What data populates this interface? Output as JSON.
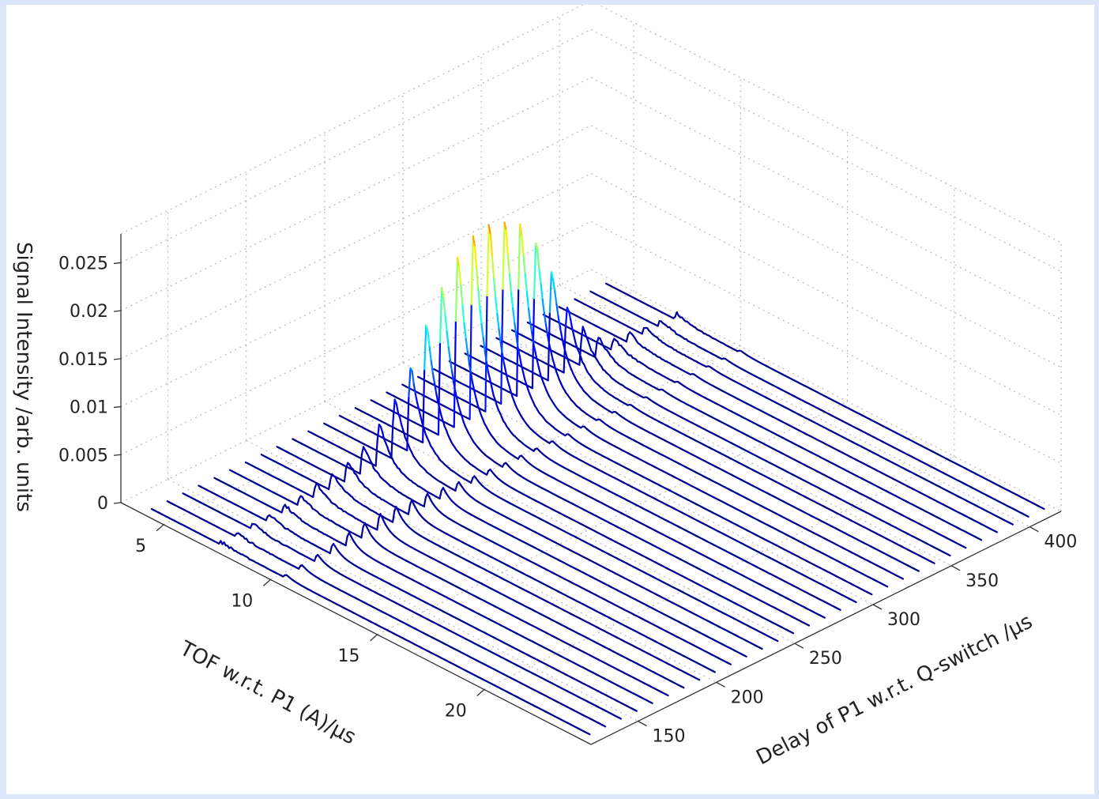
{
  "chart_data": {
    "type": "waterfall-3d",
    "title": "",
    "xlabel": "TOF w.r.t. P1 (A)/µs",
    "ylabel": "Delay of P1 w.r.t. Q-switch /µs",
    "zlabel": "Signal Intensity /arb. units",
    "xlim": [
      3,
      25
    ],
    "ylim": [
      120,
      420
    ],
    "zlim": [
      0,
      0.028
    ],
    "x_ticks": [
      5,
      10,
      15,
      20
    ],
    "y_ticks": [
      150,
      200,
      250,
      300,
      350,
      400
    ],
    "z_ticks": [
      "0",
      "0.005",
      "0.01",
      "0.015",
      "0.02",
      "0.025"
    ],
    "z_tick_values": [
      0,
      0.005,
      0.01,
      0.015,
      0.02,
      0.025
    ],
    "grid": true,
    "colormap": [
      "#00008f",
      "#0000ff",
      "#00ffff",
      "#ffff00",
      "#ff0000",
      "#800000"
    ],
    "series_delays": [
      126,
      136,
      146,
      156,
      166,
      176,
      186,
      196,
      206,
      216,
      226,
      236,
      246,
      256,
      266,
      276,
      286,
      296,
      306,
      316,
      326,
      336,
      346,
      356,
      366,
      376,
      386,
      396,
      406,
      416
    ],
    "peak_tof": 7.2,
    "peak_heights": [
      0.0003,
      0.0005,
      0.0007,
      0.001,
      0.0012,
      0.0015,
      0.002,
      0.0025,
      0.003,
      0.004,
      0.006,
      0.0085,
      0.012,
      0.017,
      0.021,
      0.0245,
      0.0265,
      0.027,
      0.0262,
      0.0245,
      0.021,
      0.0155,
      0.0095,
      0.0055,
      0.003,
      0.0018,
      0.0013,
      0.001,
      0.0009,
      0.0008
    ],
    "secondary_tof": 10.2,
    "secondary_heights": [
      0.0005,
      0.0008,
      0.0012,
      0.0017,
      0.0022,
      0.0025,
      0.0027,
      0.0026,
      0.0024,
      0.0022,
      0.0019,
      0.0016,
      0.0013,
      0.0011,
      0.0009,
      0.0008,
      0.0007,
      0.0006,
      0.0005,
      0.0005,
      0.0004,
      0.0004,
      0.0003,
      0.0003,
      0.0003,
      0.0003,
      0.0003,
      0.0003,
      0.0003,
      0.0003
    ],
    "baseline_noise": 0.0004
  }
}
